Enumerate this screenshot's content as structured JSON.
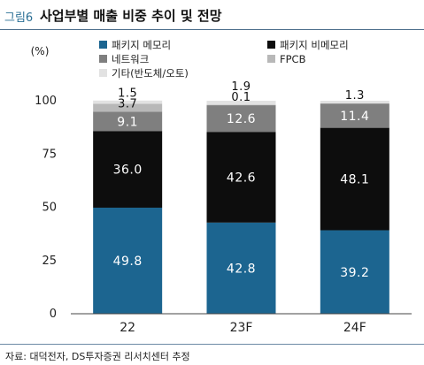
{
  "figure": {
    "number": "그림6",
    "title": "사업부별 매출 비중 추이 및 전망",
    "source": "자료: 대덕전자, DS투자증권 리서치센터 추정"
  },
  "chart_data": {
    "type": "bar",
    "stacked": true,
    "title": "사업부별 매출 비중 추이 및 전망",
    "xlabel": "",
    "ylabel": "(%)",
    "ylim": [
      0,
      100
    ],
    "yticks": [
      0,
      25,
      50,
      75,
      100
    ],
    "categories": [
      "22",
      "23F",
      "24F"
    ],
    "series": [
      {
        "name": "패키지 메모리",
        "color": "#1c6590",
        "label_color": "#ffffff",
        "values": [
          49.8,
          42.8,
          39.2
        ]
      },
      {
        "name": "패키지 비메모리",
        "color": "#0d0d0d",
        "label_color": "#ffffff",
        "values": [
          36.0,
          42.6,
          48.1
        ]
      },
      {
        "name": "네트워크",
        "color": "#7f7f7f",
        "label_color": "#ffffff",
        "values": [
          9.1,
          12.6,
          11.4
        ]
      },
      {
        "name": "FPCB",
        "color": "#b8b8b8",
        "label_color": "#111111",
        "values": [
          3.7,
          0.1,
          0.0
        ]
      },
      {
        "name": "기타(반도체/오토)",
        "color": "#e2e2e2",
        "label_color": "#111111",
        "values": [
          1.5,
          1.9,
          1.3
        ]
      }
    ],
    "data_labels": [
      [
        "49.8",
        "42.8",
        "39.2"
      ],
      [
        "36.0",
        "42.6",
        "48.1"
      ],
      [
        "9.1",
        "12.6",
        "11.4"
      ],
      [
        "3.7",
        "0.1",
        ""
      ],
      [
        "1.5",
        "1.9",
        "1.3"
      ]
    ],
    "legend_position": "top-center",
    "grid": false
  }
}
